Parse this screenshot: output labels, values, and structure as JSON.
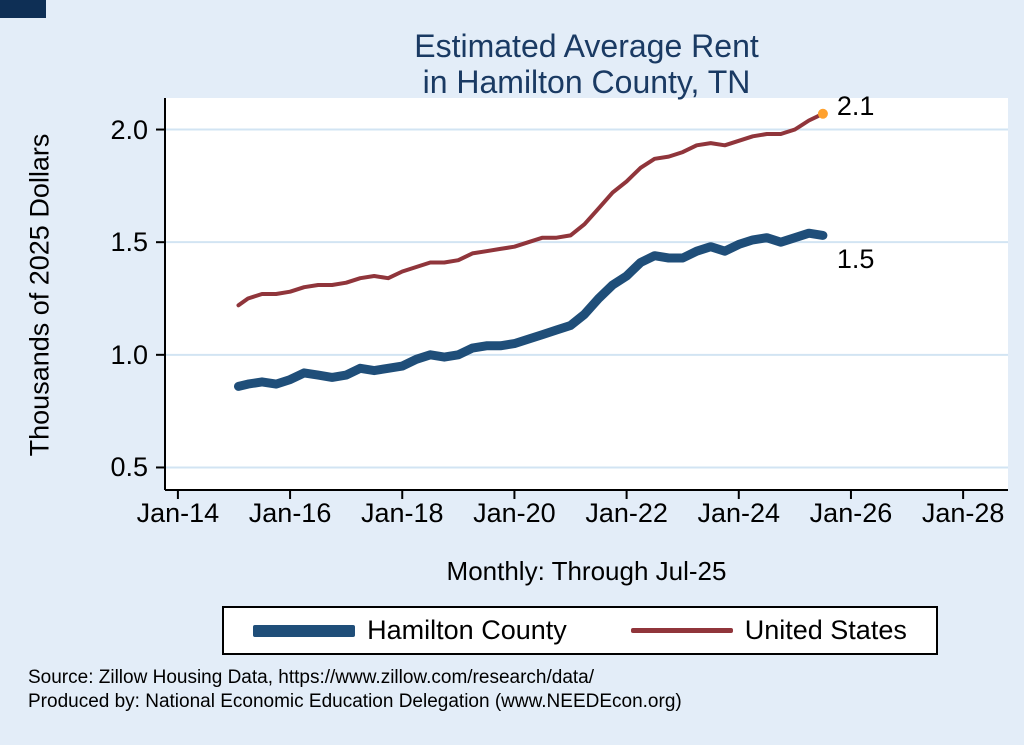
{
  "page": {
    "title_line1": "Estimated Average Rent",
    "title_line2": "in Hamilton County, TN",
    "subtitle": "Monthly: Through Jul-25",
    "ylabel": "Thousands of 2025 Dollars",
    "source_line1": "Source: Zillow Housing Data, https://www.zillow.com/research/data/",
    "source_line2": "Produced by: National Economic Education Delegation (www.NEEDEcon.org)"
  },
  "colors": {
    "background": "#e3edf8",
    "plot_background": "#ffffff",
    "grid": "#d2e4f3",
    "axis": "#000000",
    "title": "#1a3a63",
    "corner_artifact": "#0e2f55"
  },
  "chart_data": {
    "type": "line",
    "title": "Estimated Average Rent in Hamilton County, TN",
    "subtitle": "Monthly: Through Jul-25",
    "xlabel": "",
    "ylabel": "Thousands of 2025 Dollars",
    "x_unit": "decimal_year",
    "grid": true,
    "legend_position": "bottom",
    "xlim": [
      2013.77,
      2028.8
    ],
    "ylim": [
      0.4,
      2.14
    ],
    "xticks": [
      2014,
      2016,
      2018,
      2020,
      2022,
      2024,
      2026,
      2028
    ],
    "xtick_labels": [
      "Jan-14",
      "Jan-16",
      "Jan-18",
      "Jan-20",
      "Jan-22",
      "Jan-24",
      "Jan-26",
      "Jan-28"
    ],
    "yticks": [
      0.5,
      1.0,
      1.5,
      2.0
    ],
    "ytick_labels": [
      "0.5",
      "1.0",
      "1.5",
      "2.0"
    ],
    "x": [
      2015.08,
      2015.25,
      2015.5,
      2015.75,
      2016,
      2016.25,
      2016.5,
      2016.75,
      2017,
      2017.25,
      2017.5,
      2017.75,
      2018,
      2018.25,
      2018.5,
      2018.75,
      2019,
      2019.25,
      2019.5,
      2019.75,
      2020,
      2020.25,
      2020.5,
      2020.75,
      2021,
      2021.25,
      2021.5,
      2021.75,
      2022,
      2022.25,
      2022.5,
      2022.75,
      2023,
      2023.25,
      2023.5,
      2023.75,
      2024,
      2024.25,
      2024.5,
      2024.75,
      2025,
      2025.25,
      2025.5
    ],
    "series": [
      {
        "name": "Hamilton County",
        "color": "#1f4e79",
        "line_width": 9,
        "end_label": "1.5",
        "end_label_dy": 10,
        "values": [
          0.86,
          0.87,
          0.88,
          0.87,
          0.89,
          0.92,
          0.91,
          0.9,
          0.91,
          0.94,
          0.93,
          0.94,
          0.95,
          0.98,
          1.0,
          0.99,
          1.0,
          1.03,
          1.04,
          1.04,
          1.05,
          1.07,
          1.09,
          1.11,
          1.13,
          1.18,
          1.25,
          1.31,
          1.35,
          1.41,
          1.44,
          1.43,
          1.43,
          1.46,
          1.48,
          1.46,
          1.49,
          1.51,
          1.52,
          1.5,
          1.52,
          1.54,
          1.53
        ]
      },
      {
        "name": "United States",
        "color": "#90353b",
        "line_width": 4,
        "end_label": "2.1",
        "end_label_dy": -22,
        "end_dot_color": "#ffa12e",
        "values": [
          1.22,
          1.25,
          1.27,
          1.27,
          1.28,
          1.3,
          1.31,
          1.31,
          1.32,
          1.34,
          1.35,
          1.34,
          1.37,
          1.39,
          1.41,
          1.41,
          1.42,
          1.45,
          1.46,
          1.47,
          1.48,
          1.5,
          1.52,
          1.52,
          1.53,
          1.58,
          1.65,
          1.72,
          1.77,
          1.83,
          1.87,
          1.88,
          1.9,
          1.93,
          1.94,
          1.93,
          1.95,
          1.97,
          1.98,
          1.98,
          2.0,
          2.04,
          2.07
        ]
      }
    ]
  }
}
